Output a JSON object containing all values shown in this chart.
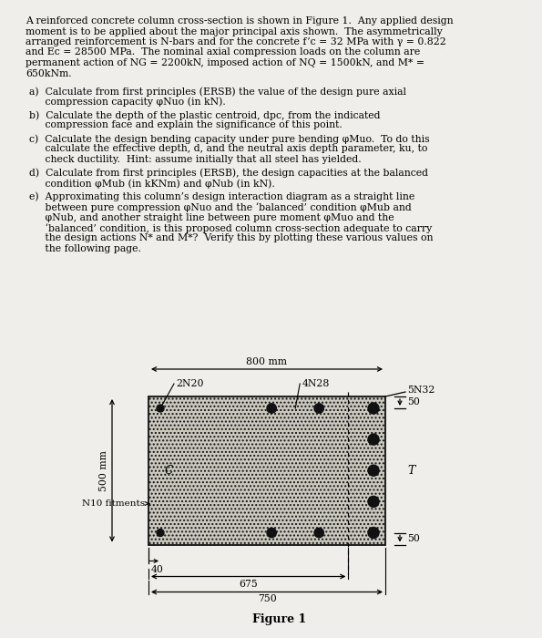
{
  "background_color": "#f0eeea",
  "title_lines": [
    "A reinforced concrete column cross-section is shown in Figure 1.  Any applied design",
    "moment is to be applied about the major principal axis shown.  The asymmetrically",
    "arranged reinforcement is N-bars and for the concrete f’c = 32 MPa with γ = 0.822",
    "and Ec = 28500 MPa.  The nominal axial compression loads on the column are",
    "permanent action of NG = 2200kN, imposed action of NQ = 1500kN, and M* =",
    "650kNm."
  ],
  "q_a_line1": "a)  Calculate from first principles (ERSB) the value of the design pure axial",
  "q_a_line2": "     compression capacity φNuo (in kN).",
  "q_b_line1": "b)  Calculate the depth of the plastic centroid, dpc, from the indicated",
  "q_b_line2": "     compression face and explain the significance of this point.",
  "q_c_line1": "c)  Calculate the design bending capacity under pure bending φMuo.  To do this",
  "q_c_line2": "     calculate the effective depth, d, and the neutral axis depth parameter, ku, to",
  "q_c_line3": "     check ductility.  Hint: assume initially that all steel has yielded.",
  "q_d_line1": "d)  Calculate from first principles (ERSB), the design capacities at the balanced",
  "q_d_line2": "     condition φMub (in kKNm) and φNub (in kN).",
  "q_e_line1": "e)  Approximating this column’s design interaction diagram as a straight line",
  "q_e_line2": "     between pure compression φNuo and the ‘balanced’ condition φMub and",
  "q_e_line3": "     φNub, and another straight line between pure moment φMuo and the",
  "q_e_line4": "     ‘balanced’ condition, is this proposed column cross-section adequate to carry",
  "q_e_line5": "     the design actions N* and M*?  Verify this by plotting these various values on",
  "q_e_line6": "     the following page.",
  "figure_label": "Figure 1",
  "label_2N20": "2N20",
  "label_4N28": "4N28",
  "label_5N32": "5N32",
  "label_C": "C",
  "label_T": "T",
  "label_fitments": "N10 fitments",
  "dim_800": "800 mm",
  "dim_500": "500 mm",
  "dim_50": "50",
  "dim_40": "40",
  "dim_675": "675",
  "dim_750": "750",
  "concrete_face": "#ccc9c0",
  "bar_color": "#111111"
}
